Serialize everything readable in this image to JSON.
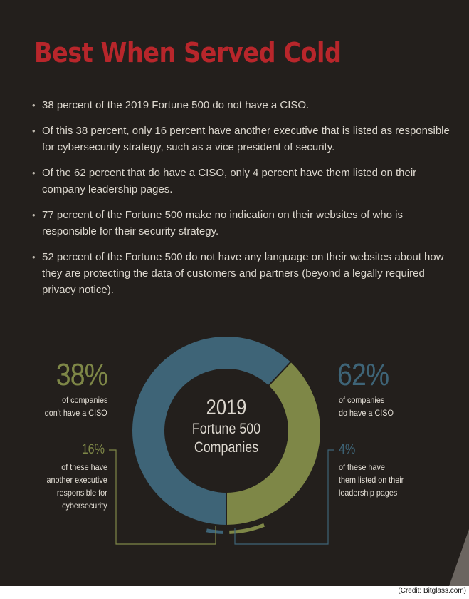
{
  "title": "Best When Served Cold",
  "colors": {
    "background": "#231f1c",
    "title": "#b8262b",
    "olive": "#7e8747",
    "blue": "#3e6477",
    "text": "#ddd8cf"
  },
  "bullets": [
    "38 percent of the 2019 Fortune 500 do not have a CISO.",
    "Of this 38 percent, only 16 percent have another executive that is listed as responsible for cybersecurity strategy, such as a vice president of security.",
    "Of the 62 percent that do have a CISO, only 4 percent have them listed on their company leadership pages.",
    "77 percent of the Fortune 500 make no indication on their websites of who is responsible for their security strategy.",
    "52 percent of the Fortune 500 do not have any language on their websites about how they are protecting the data of customers and partners (beyond a legally required privacy notice)."
  ],
  "bullet_symbol": "•",
  "chart_data": {
    "type": "pie",
    "title": "",
    "center_label": {
      "year": "2019",
      "line1": "Fortune 500",
      "line2": "Companies"
    },
    "slices": [
      {
        "value": 38,
        "label": "38%",
        "desc_line1": "of companies",
        "desc_line2": "don't have a CISO",
        "color": "#7e8747",
        "sub": {
          "value": 16,
          "label": "16%",
          "desc": [
            "of these have",
            "another executive",
            "responsible for",
            "cybersecurity"
          ]
        }
      },
      {
        "value": 62,
        "label": "62%",
        "desc_line1": "of companies",
        "desc_line2": "do have a CISO",
        "color": "#3e6477",
        "sub": {
          "value": 4,
          "label": "4%",
          "desc": [
            "of these have",
            "them listed on their",
            "leadership pages"
          ]
        }
      }
    ]
  },
  "credit": "(Credit: Bitglass.com)"
}
